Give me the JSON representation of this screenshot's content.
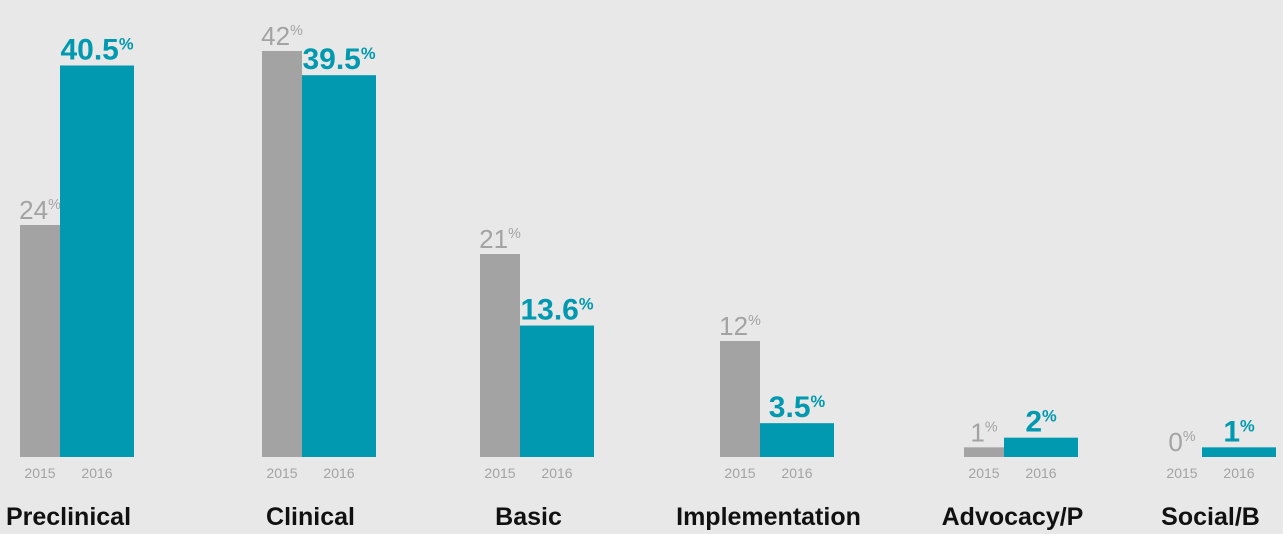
{
  "chart_data": {
    "type": "bar",
    "categories": [
      "Preclinical",
      "Clinical",
      "Basic",
      "Implementation",
      "Advocacy/P",
      "Social/B"
    ],
    "series": [
      {
        "name": "2015",
        "color": "#a3a3a3",
        "values": [
          24,
          42,
          21,
          12,
          1,
          0
        ],
        "value_labels": [
          "24%",
          "42%",
          "21%",
          "12%",
          "1%",
          "0%"
        ]
      },
      {
        "name": "2016",
        "color": "#0099b0",
        "values": [
          40.5,
          39.5,
          13.6,
          3.5,
          2,
          1
        ],
        "value_labels": [
          "40.5%",
          "39.5%",
          "13.6%",
          "3.5%",
          "2%",
          "1%"
        ]
      }
    ]
  }
}
